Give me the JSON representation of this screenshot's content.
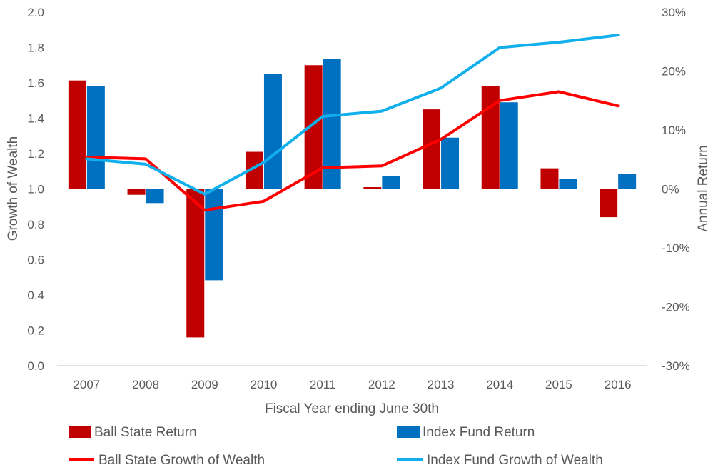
{
  "chart_data": {
    "type": "bar+line",
    "title": "",
    "categories": [
      "2007",
      "2008",
      "2009",
      "2010",
      "2011",
      "2012",
      "2013",
      "2014",
      "2015",
      "2016"
    ],
    "xlabel": "Fiscal Year ending June 30th",
    "ylabel_left": "Growth of Wealth",
    "ylabel_right": "Annual Return",
    "ylim_left": [
      0.0,
      2.0
    ],
    "yticks_left": [
      "0.0",
      "0.2",
      "0.4",
      "0.6",
      "0.8",
      "1.0",
      "1.2",
      "1.4",
      "1.6",
      "1.8",
      "2.0"
    ],
    "ylim_right": [
      -30,
      30
    ],
    "yticks_right": [
      "-30%",
      "-20%",
      "-10%",
      "0%",
      "10%",
      "20%",
      "30%"
    ],
    "bar_series": [
      {
        "name": "Ball State Return",
        "color": "#C00000",
        "axis": "right",
        "unit": "%",
        "values": [
          18.4,
          -1.0,
          -25.2,
          6.3,
          21.0,
          0.3,
          13.5,
          17.4,
          3.5,
          -4.8
        ]
      },
      {
        "name": "Index Fund Return",
        "color": "#0070C0",
        "axis": "right",
        "unit": "%",
        "values": [
          17.4,
          -2.4,
          -15.5,
          19.5,
          22.0,
          2.2,
          8.7,
          14.7,
          1.7,
          2.6
        ]
      }
    ],
    "line_series": [
      {
        "name": "Ball State Growth of Wealth",
        "color": "#FF0000",
        "axis": "left",
        "values": [
          1.18,
          1.17,
          0.88,
          0.93,
          1.12,
          1.13,
          1.28,
          1.5,
          1.55,
          1.47
        ]
      },
      {
        "name": "Index Fund Growth of Wealth",
        "color": "#11B0EC",
        "axis": "left",
        "values": [
          1.17,
          1.14,
          0.97,
          1.15,
          1.41,
          1.44,
          1.57,
          1.8,
          1.83,
          1.87
        ]
      }
    ],
    "legend": [
      "Ball State Return",
      "Index Fund Return",
      "Ball State Growth of Wealth",
      "Index Fund Growth of Wealth"
    ],
    "legend_position": "bottom",
    "grid": false
  }
}
